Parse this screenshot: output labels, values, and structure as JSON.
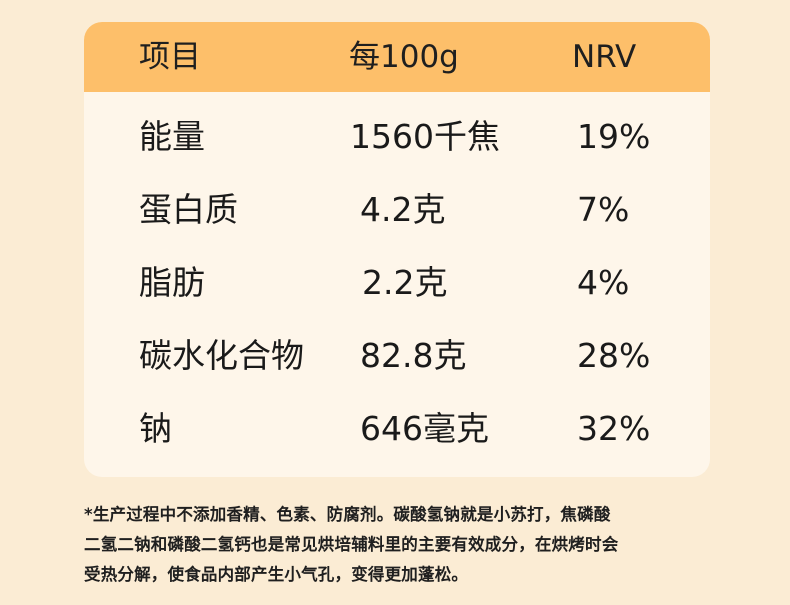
{
  "table": {
    "headers": [
      "项目",
      "每100g",
      "NRV"
    ],
    "rows": [
      {
        "item": "能量",
        "per100g": "1560千焦",
        "nrv": "19%"
      },
      {
        "item": "蛋白质",
        "per100g": "4.2克",
        "nrv": "7%"
      },
      {
        "item": "脂肪",
        "per100g": "2.2克",
        "nrv": "4%"
      },
      {
        "item": "碳水化合物",
        "per100g": "82.8克",
        "nrv": "28%"
      },
      {
        "item": "钠",
        "per100g": "646毫克",
        "nrv": "32%"
      }
    ]
  },
  "footnote": {
    "lines": [
      "*生产过程中不添加香精、色素、防腐剂。碳酸氢钠就是小苏打，焦磷酸",
      "二氢二钠和磷酸二氢钙也是常见烘培辅料里的主要有效成分，在烘烤时会",
      "受热分解，使食品内部产生小气孔，变得更加蓬松。"
    ]
  },
  "colors": {
    "background": "#fbecd4",
    "header": "#fdbf6a",
    "card": "#fef6ea"
  }
}
